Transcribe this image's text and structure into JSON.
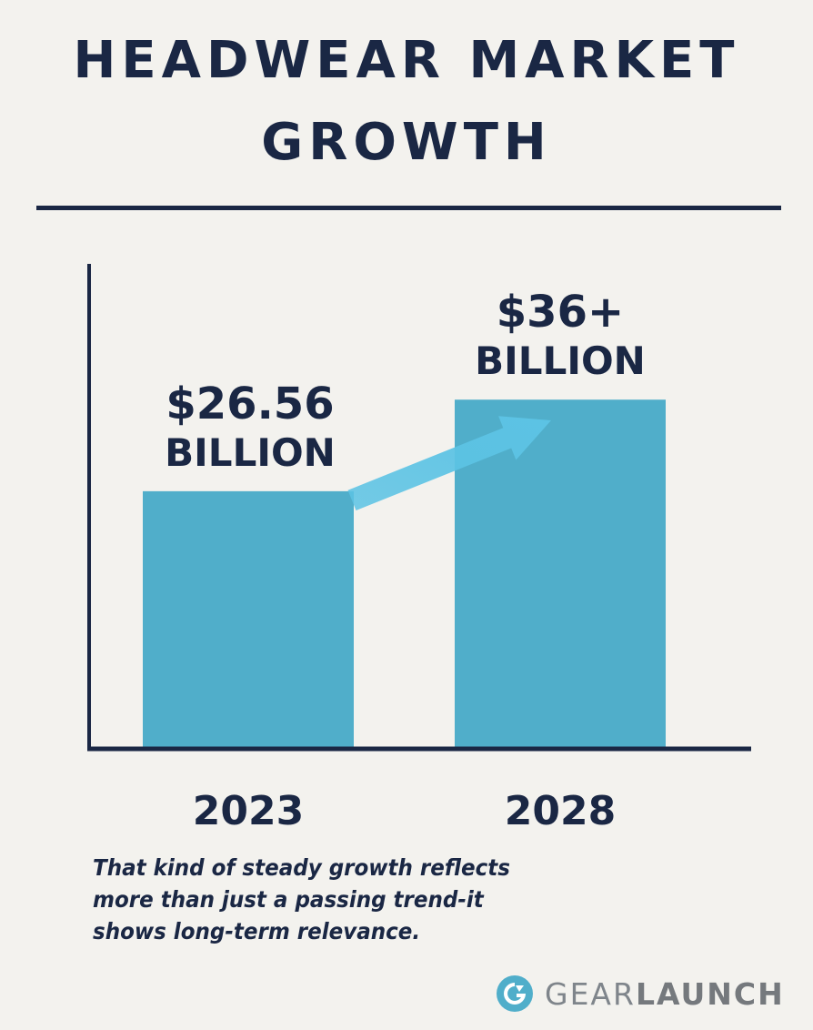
{
  "title": {
    "line1": "HEADWEAR MARKET",
    "line2": "GROWTH"
  },
  "chart_data": {
    "type": "bar",
    "categories": [
      "2023",
      "2028"
    ],
    "values": [
      26.56,
      36
    ],
    "data_labels": [
      {
        "line1": "$26.56",
        "line2": "BILLION"
      },
      {
        "line1": "$36+",
        "line2": "BILLION"
      }
    ],
    "ylim": [
      0,
      50
    ],
    "grid": false,
    "colors": {
      "bar": "#50aeca",
      "arrow": "#5cc3e4",
      "axis": "#1a2744",
      "text": "#1a2744"
    }
  },
  "caption": "That kind of steady growth reflects more than just a passing trend-it shows long-term relevance.",
  "brand": {
    "name_light": "GEAR",
    "name_bold": "LAUNCH",
    "icon": "gearlaunch-logo-icon",
    "color": "#50aeca"
  }
}
